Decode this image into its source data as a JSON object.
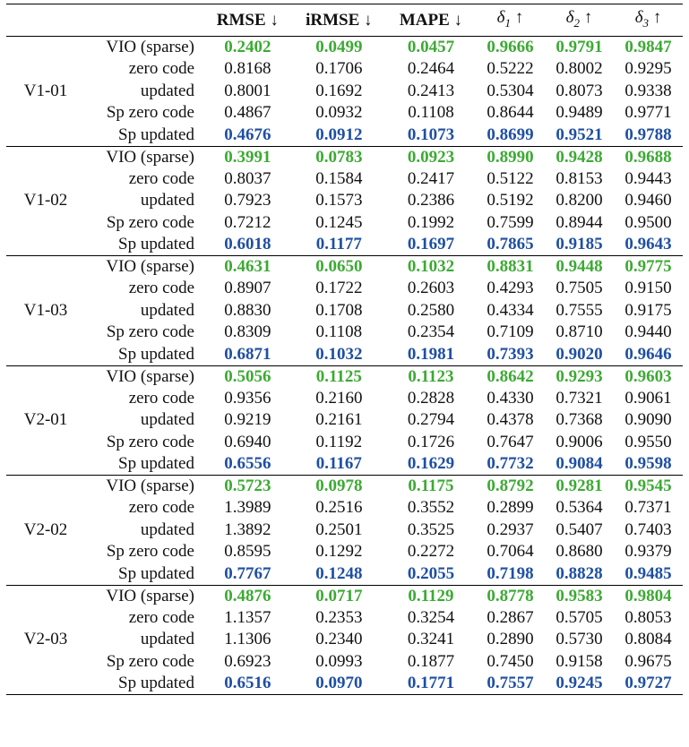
{
  "header": {
    "rmse": "RMSE ↓",
    "irmse": "iRMSE ↓",
    "mape": "MAPE ↓",
    "d1": "1",
    "d2": "2",
    "d3": "3",
    "delta_symbol": "δ",
    "up_arrow": "↑"
  },
  "colors": {
    "best_vio": "#3caa33",
    "best_sp_updated": "#1e4fa3"
  },
  "groups": [
    {
      "seq": "V1-01",
      "rows": [
        {
          "method": "VIO (sparse)",
          "v": [
            "0.2402",
            "0.0499",
            "0.0457",
            "0.9666",
            "0.9791",
            "0.9847"
          ]
        },
        {
          "method": "zero code",
          "v": [
            "0.8168",
            "0.1706",
            "0.2464",
            "0.5222",
            "0.8002",
            "0.9295"
          ]
        },
        {
          "method": "updated",
          "v": [
            "0.8001",
            "0.1692",
            "0.2413",
            "0.5304",
            "0.8073",
            "0.9338"
          ]
        },
        {
          "method": "Sp zero code",
          "v": [
            "0.4867",
            "0.0932",
            "0.1108",
            "0.8644",
            "0.9489",
            "0.9771"
          ]
        },
        {
          "method": "Sp updated",
          "v": [
            "0.4676",
            "0.0912",
            "0.1073",
            "0.8699",
            "0.9521",
            "0.9788"
          ]
        }
      ]
    },
    {
      "seq": "V1-02",
      "rows": [
        {
          "method": "VIO (sparse)",
          "v": [
            "0.3991",
            "0.0783",
            "0.0923",
            "0.8990",
            "0.9428",
            "0.9688"
          ]
        },
        {
          "method": "zero code",
          "v": [
            "0.8037",
            "0.1584",
            "0.2417",
            "0.5122",
            "0.8153",
            "0.9443"
          ]
        },
        {
          "method": "updated",
          "v": [
            "0.7923",
            "0.1573",
            "0.2386",
            "0.5192",
            "0.8200",
            "0.9460"
          ]
        },
        {
          "method": "Sp zero code",
          "v": [
            "0.7212",
            "0.1245",
            "0.1992",
            "0.7599",
            "0.8944",
            "0.9500"
          ]
        },
        {
          "method": "Sp updated",
          "v": [
            "0.6018",
            "0.1177",
            "0.1697",
            "0.7865",
            "0.9185",
            "0.9643"
          ]
        }
      ]
    },
    {
      "seq": "V1-03",
      "rows": [
        {
          "method": "VIO (sparse)",
          "v": [
            "0.4631",
            "0.0650",
            "0.1032",
            "0.8831",
            "0.9448",
            "0.9775"
          ]
        },
        {
          "method": "zero code",
          "v": [
            "0.8907",
            "0.1722",
            "0.2603",
            "0.4293",
            "0.7505",
            "0.9150"
          ]
        },
        {
          "method": "updated",
          "v": [
            "0.8830",
            "0.1708",
            "0.2580",
            "0.4334",
            "0.7555",
            "0.9175"
          ]
        },
        {
          "method": "Sp zero code",
          "v": [
            "0.8309",
            "0.1108",
            "0.2354",
            "0.7109",
            "0.8710",
            "0.9440"
          ]
        },
        {
          "method": "Sp updated",
          "v": [
            "0.6871",
            "0.1032",
            "0.1981",
            "0.7393",
            "0.9020",
            "0.9646"
          ]
        }
      ]
    },
    {
      "seq": "V2-01",
      "rows": [
        {
          "method": "VIO (sparse)",
          "v": [
            "0.5056",
            "0.1125",
            "0.1123",
            "0.8642",
            "0.9293",
            "0.9603"
          ]
        },
        {
          "method": "zero code",
          "v": [
            "0.9356",
            "0.2160",
            "0.2828",
            "0.4330",
            "0.7321",
            "0.9061"
          ]
        },
        {
          "method": "updated",
          "v": [
            "0.9219",
            "0.2161",
            "0.2794",
            "0.4378",
            "0.7368",
            "0.9090"
          ]
        },
        {
          "method": "Sp zero code",
          "v": [
            "0.6940",
            "0.1192",
            "0.1726",
            "0.7647",
            "0.9006",
            "0.9550"
          ]
        },
        {
          "method": "Sp updated",
          "v": [
            "0.6556",
            "0.1167",
            "0.1629",
            "0.7732",
            "0.9084",
            "0.9598"
          ]
        }
      ]
    },
    {
      "seq": "V2-02",
      "rows": [
        {
          "method": "VIO (sparse)",
          "v": [
            "0.5723",
            "0.0978",
            "0.1175",
            "0.8792",
            "0.9281",
            "0.9545"
          ]
        },
        {
          "method": "zero code",
          "v": [
            "1.3989",
            "0.2516",
            "0.3552",
            "0.2899",
            "0.5364",
            "0.7371"
          ]
        },
        {
          "method": "updated",
          "v": [
            "1.3892",
            "0.2501",
            "0.3525",
            "0.2937",
            "0.5407",
            "0.7403"
          ]
        },
        {
          "method": "Sp zero code",
          "v": [
            "0.8595",
            "0.1292",
            "0.2272",
            "0.7064",
            "0.8680",
            "0.9379"
          ]
        },
        {
          "method": "Sp updated",
          "v": [
            "0.7767",
            "0.1248",
            "0.2055",
            "0.7198",
            "0.8828",
            "0.9485"
          ]
        }
      ]
    },
    {
      "seq": "V2-03",
      "rows": [
        {
          "method": "VIO (sparse)",
          "v": [
            "0.4876",
            "0.0717",
            "0.1129",
            "0.8778",
            "0.9583",
            "0.9804"
          ]
        },
        {
          "method": "zero code",
          "v": [
            "1.1357",
            "0.2353",
            "0.3254",
            "0.2867",
            "0.5705",
            "0.8053"
          ]
        },
        {
          "method": "updated",
          "v": [
            "1.1306",
            "0.2340",
            "0.3241",
            "0.2890",
            "0.5730",
            "0.8084"
          ]
        },
        {
          "method": "Sp zero code",
          "v": [
            "0.6923",
            "0.0993",
            "0.1877",
            "0.7450",
            "0.9158",
            "0.9675"
          ]
        },
        {
          "method": "Sp updated",
          "v": [
            "0.6516",
            "0.0970",
            "0.1771",
            "0.7557",
            "0.9245",
            "0.9727"
          ]
        }
      ]
    }
  ]
}
